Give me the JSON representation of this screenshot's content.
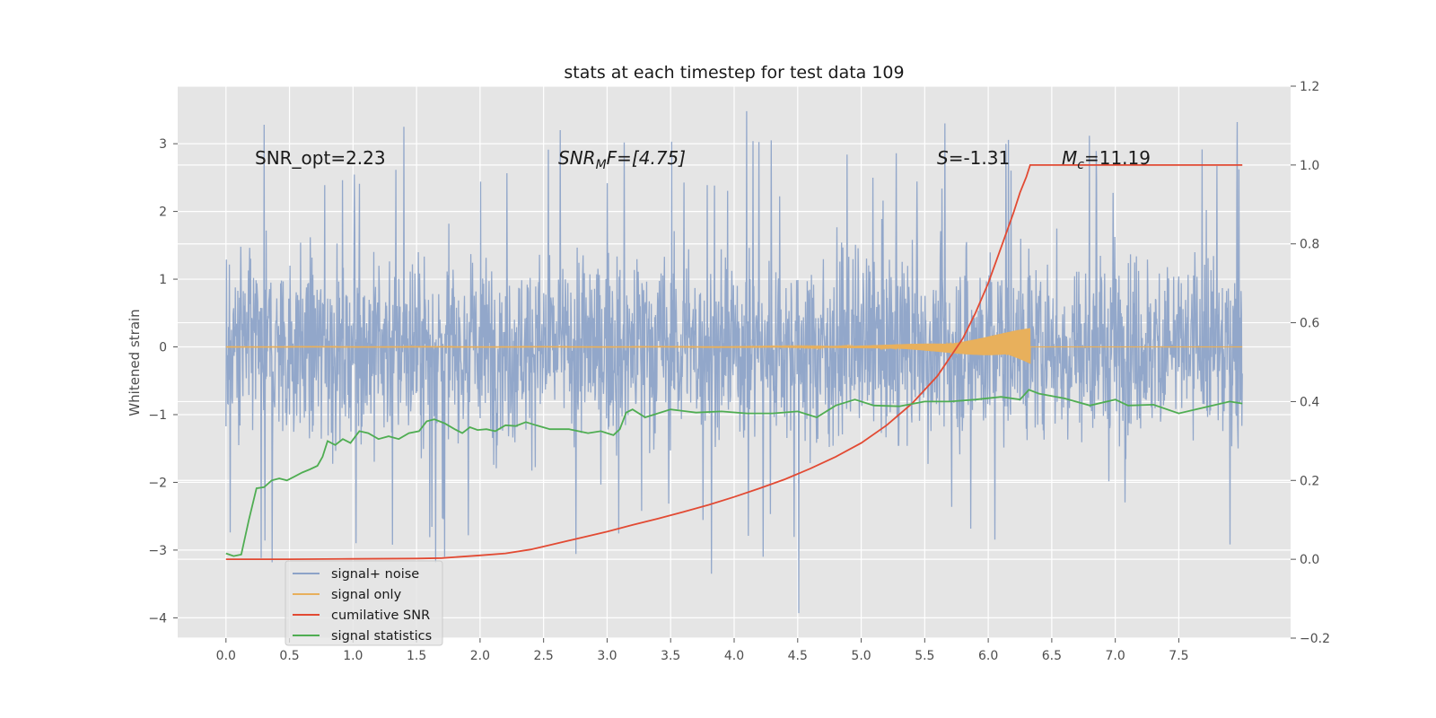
{
  "chart_data": {
    "type": "line",
    "title": "stats at each timestep for test data 109",
    "ylabel": "Whitened strain",
    "xlim": [
      -0.38,
      8.38
    ],
    "ylim_left": [
      -4.3,
      3.85
    ],
    "ylim_right": [
      -0.2,
      1.2
    ],
    "x_ticks": [
      "0.0",
      "0.5",
      "1.0",
      "1.5",
      "2.0",
      "2.5",
      "3.0",
      "3.5",
      "4.0",
      "4.5",
      "5.0",
      "5.5",
      "6.0",
      "6.5",
      "7.0",
      "7.5"
    ],
    "y_left_ticks": [
      "3",
      "2",
      "1",
      "0",
      "−1",
      "−2",
      "−3",
      "−4"
    ],
    "y_right_ticks": [
      "1.2",
      "1.0",
      "0.8",
      "0.6",
      "0.4",
      "0.2",
      "0.0",
      "−0.2"
    ],
    "annotations": {
      "snr_opt": "SNR_opt=2.23",
      "snr_mf_name": "SNR",
      "snr_mf_sub": "M",
      "snr_mf_rest": "F=[4.75]",
      "s_name": "S",
      "s_rest": "=-1.31",
      "mc_name": "M",
      "mc_sub": "c",
      "mc_rest": "=11.19"
    },
    "legend": [
      "signal+ noise",
      "signal only",
      "cumilative SNR",
      "signal statistics"
    ],
    "legend_placement": "lower-left",
    "grid": true,
    "colors": {
      "background": "#e5e5e5",
      "grid": "#ffffff",
      "noise": "#8da3c8",
      "signal": "#e8b05c",
      "snr": "#e24a33",
      "stats": "#4fad52"
    },
    "series": [
      {
        "name": "signal+ noise",
        "axis": "left",
        "x_range": [
          0.0,
          8.0
        ],
        "typical_range": [
          -0.85,
          0.95
        ],
        "peak_max": 3.48,
        "peak_min": -3.93
      },
      {
        "name": "signal only",
        "axis": "left",
        "x_range": [
          0.0,
          6.33
        ],
        "peak_amplitude": 0.3
      },
      {
        "name": "cumilative SNR",
        "axis": "right",
        "x": [
          0.0,
          0.5,
          1.0,
          1.5,
          1.7,
          2.0,
          2.2,
          2.4,
          2.6,
          2.8,
          3.0,
          3.2,
          3.4,
          3.6,
          3.8,
          4.0,
          4.2,
          4.4,
          4.6,
          4.8,
          5.0,
          5.2,
          5.4,
          5.6,
          5.8,
          5.9,
          6.0,
          6.1,
          6.2,
          6.25,
          6.3,
          6.33,
          6.6,
          7.0,
          7.5,
          8.0
        ],
        "y": [
          0.0,
          0.0,
          0.001,
          0.002,
          0.003,
          0.01,
          0.015,
          0.025,
          0.04,
          0.055,
          0.07,
          0.087,
          0.103,
          0.12,
          0.138,
          0.158,
          0.18,
          0.203,
          0.23,
          0.26,
          0.295,
          0.34,
          0.395,
          0.465,
          0.56,
          0.625,
          0.7,
          0.79,
          0.88,
          0.93,
          0.97,
          1.0,
          1.0,
          1.0,
          1.0,
          1.0
        ]
      },
      {
        "name": "signal statistics",
        "axis": "right",
        "x": [
          0.0,
          0.06,
          0.12,
          0.18,
          0.24,
          0.3,
          0.36,
          0.42,
          0.48,
          0.54,
          0.6,
          0.66,
          0.72,
          0.76,
          0.8,
          0.86,
          0.92,
          0.98,
          1.05,
          1.12,
          1.2,
          1.28,
          1.36,
          1.44,
          1.52,
          1.58,
          1.64,
          1.72,
          1.8,
          1.86,
          1.92,
          1.98,
          2.05,
          2.12,
          2.2,
          2.28,
          2.36,
          2.44,
          2.55,
          2.7,
          2.85,
          2.95,
          3.05,
          3.1,
          3.15,
          3.2,
          3.3,
          3.5,
          3.7,
          3.9,
          4.1,
          4.3,
          4.5,
          4.65,
          4.8,
          4.95,
          5.1,
          5.3,
          5.5,
          5.7,
          5.9,
          6.1,
          6.25,
          6.32,
          6.4,
          6.6,
          6.8,
          7.0,
          7.1,
          7.3,
          7.5,
          7.7,
          7.9,
          8.0
        ],
        "y": [
          0.015,
          0.008,
          0.012,
          0.1,
          0.18,
          0.183,
          0.2,
          0.205,
          0.2,
          0.21,
          0.22,
          0.228,
          0.237,
          0.26,
          0.3,
          0.29,
          0.305,
          0.295,
          0.325,
          0.32,
          0.305,
          0.312,
          0.305,
          0.32,
          0.325,
          0.35,
          0.355,
          0.345,
          0.33,
          0.32,
          0.335,
          0.328,
          0.33,
          0.325,
          0.34,
          0.338,
          0.348,
          0.34,
          0.33,
          0.33,
          0.32,
          0.325,
          0.315,
          0.33,
          0.372,
          0.38,
          0.36,
          0.38,
          0.372,
          0.375,
          0.37,
          0.37,
          0.375,
          0.36,
          0.39,
          0.405,
          0.39,
          0.388,
          0.4,
          0.4,
          0.405,
          0.412,
          0.405,
          0.43,
          0.42,
          0.408,
          0.39,
          0.405,
          0.39,
          0.392,
          0.37,
          0.385,
          0.4,
          0.395
        ]
      }
    ]
  }
}
